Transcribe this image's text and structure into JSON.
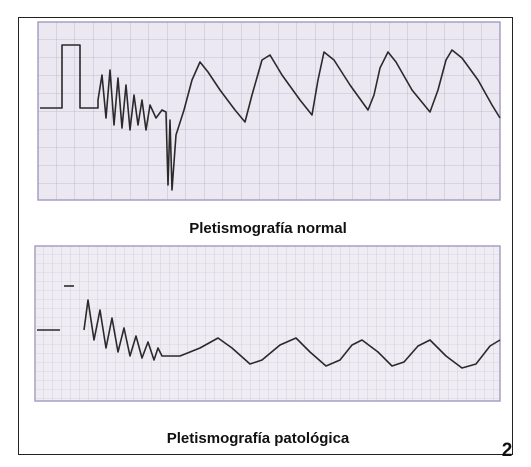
{
  "figure": {
    "caption_top": "Pletismografía normal",
    "caption_bottom": "Pletismografía patológica",
    "number": "2"
  }
}
